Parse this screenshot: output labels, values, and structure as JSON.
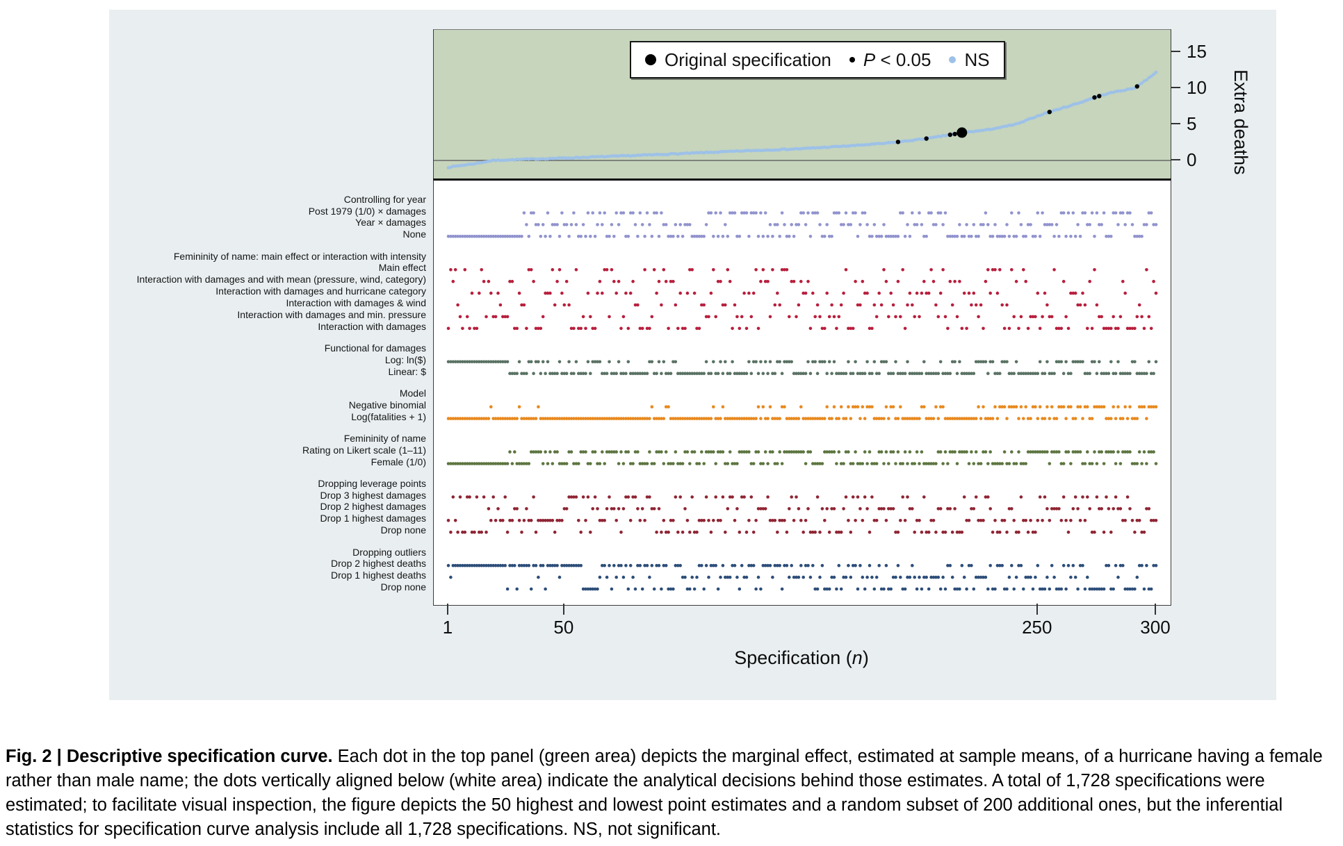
{
  "figure": {
    "background": "#e9eff1",
    "caption": {
      "lead": "Fig. 2 | Descriptive specification curve.",
      "body": " Each dot in the top panel (green area) depicts the marginal effect, estimated at sample means, of a hurricane having a female rather than male name; the dots vertically aligned below (white area) indicate the analytical decisions behind those estimates. A total of 1,728 specifications were estimated; to facilitate visual inspection, the figure depicts the 50 highest and lowest point estimates and a random subset of 200 additional ones, but the inferential statistics for specification curve analysis include all 1,728 specifications. NS, not significant."
    }
  },
  "chart_data": {
    "type": "scatter",
    "title": "Descriptive specification curve",
    "seed": 7,
    "n_columns": 300,
    "top_panel": {
      "ylabel": "Extra deaths",
      "yticks": [
        0,
        5,
        10,
        15
      ],
      "ylim": [
        -2.7,
        17.6
      ],
      "background": "#c6d5bc",
      "ns_color": "#9dc1e8",
      "sig_color": "#000000",
      "zero_line_color": "#666666",
      "curve_anchors": [
        [
          1,
          -0.95
        ],
        [
          5,
          -0.75
        ],
        [
          12,
          -0.45
        ],
        [
          20,
          0
        ],
        [
          35,
          0.18
        ],
        [
          50,
          0.33
        ],
        [
          75,
          0.62
        ],
        [
          100,
          0.95
        ],
        [
          125,
          1.3
        ],
        [
          150,
          1.62
        ],
        [
          170,
          2.0
        ],
        [
          185,
          2.35
        ],
        [
          195,
          2.7
        ],
        [
          205,
          3.1
        ],
        [
          212,
          3.5
        ],
        [
          220,
          3.9
        ],
        [
          228,
          4.2
        ],
        [
          235,
          4.6
        ],
        [
          242,
          5.1
        ],
        [
          248,
          5.9
        ],
        [
          253,
          6.5
        ],
        [
          258,
          7.0
        ],
        [
          263,
          7.5
        ],
        [
          268,
          8.0
        ],
        [
          273,
          8.6
        ],
        [
          278,
          9.1
        ],
        [
          283,
          9.5
        ],
        [
          288,
          9.8
        ],
        [
          291,
          10.0
        ],
        [
          294,
          10.7
        ],
        [
          297,
          11.4
        ],
        [
          300,
          12.2
        ]
      ],
      "significant_specs": [
        191,
        203,
        213,
        215,
        255,
        274,
        276,
        292
      ],
      "original_spec": {
        "n": 218,
        "extra_deaths": 3.85
      }
    },
    "x_axis": {
      "label_prefix": "Specification (",
      "label_italic": "n",
      "label_suffix": ")",
      "ticks": [
        1,
        50,
        250,
        300
      ],
      "range": [
        1,
        300
      ]
    },
    "legend": {
      "items": [
        {
          "marker": "large-black-dot",
          "label": "Original specification"
        },
        {
          "marker": "small-black-dot",
          "label_italic": "P",
          "label": " < 0.05"
        },
        {
          "marker": "blue-dot",
          "label": "NS"
        }
      ]
    },
    "groups": [
      {
        "header": "Controlling for year",
        "color": "#9193ce",
        "rows": [
          "Post 1979 (1/0) × damages",
          "Year × damages",
          "None"
        ],
        "choice_segments": [
          {
            "from": 1,
            "to": 26,
            "weights": [
              0,
              0,
              1
            ]
          },
          {
            "from": 27,
            "to": 300,
            "weights": [
              0.33,
              0.3,
              0.37
            ]
          }
        ]
      },
      {
        "header": "Femininity of name: main effect or interaction with intensity",
        "color": "#b81f3d",
        "rows": [
          "Main effect",
          "Interaction with damages and with mean (pressure, wind, category)",
          "Interaction with damages and hurricane category",
          "Interaction with damages & wind",
          "Interaction with damages and min. pressure",
          "Interaction with damages"
        ],
        "choice_segments": [
          {
            "from": 1,
            "to": 270,
            "weights": [
              0.13,
              0.17,
              0.17,
              0.17,
              0.17,
              0.19
            ]
          },
          {
            "from": 271,
            "to": 300,
            "weights": [
              0.08,
              0.1,
              0.12,
              0.12,
              0.13,
              0.45
            ]
          }
        ]
      },
      {
        "header": "Functional for damages",
        "color": "#5a7264",
        "rows": [
          "Log: ln($)",
          "Linear: $"
        ],
        "choice_segments": [
          {
            "from": 1,
            "to": 26,
            "weights": [
              1,
              0
            ]
          },
          {
            "from": 27,
            "to": 300,
            "weights": [
              0.32,
              0.68
            ]
          }
        ]
      },
      {
        "header": "Model",
        "color": "#e8891f",
        "rows": [
          "Negative binomial",
          "Log(fatalities + 1)"
        ],
        "choice_segments": [
          {
            "from": 1,
            "to": 130,
            "weights": [
              0.06,
              0.94
            ]
          },
          {
            "from": 131,
            "to": 230,
            "weights": [
              0.25,
              0.75
            ]
          },
          {
            "from": 231,
            "to": 300,
            "weights": [
              0.6,
              0.4
            ]
          }
        ]
      },
      {
        "header": "Femininity of name",
        "color": "#5d7540",
        "rows": [
          "Rating on Likert scale (1–11)",
          "Female (1/0)"
        ],
        "choice_segments": [
          {
            "from": 1,
            "to": 26,
            "weights": [
              0,
              1
            ]
          },
          {
            "from": 27,
            "to": 300,
            "weights": [
              0.5,
              0.5
            ]
          }
        ]
      },
      {
        "header": "Dropping leverage points",
        "color": "#8f2433",
        "rows": [
          "Drop 3 highest damages",
          "Drop 2 highest damages",
          "Drop 1 highest damages",
          "Drop none"
        ],
        "choice_segments": [
          {
            "from": 1,
            "to": 16,
            "weights": [
              0.3,
              0.1,
              0.05,
              0.55
            ]
          },
          {
            "from": 17,
            "to": 48,
            "weights": [
              0.08,
              0.07,
              0.75,
              0.1
            ]
          },
          {
            "from": 49,
            "to": 300,
            "weights": [
              0.22,
              0.25,
              0.28,
              0.25
            ]
          }
        ]
      },
      {
        "header": "Dropping outliers",
        "color": "#2d4e79",
        "rows": [
          "Drop 2 highest deaths",
          "Drop 1 highest deaths",
          "Drop none"
        ],
        "choice_segments": [
          {
            "from": 1,
            "to": 55,
            "weights": [
              0.92,
              0.04,
              0.04
            ]
          },
          {
            "from": 56,
            "to": 150,
            "weights": [
              0.45,
              0.27,
              0.28
            ]
          },
          {
            "from": 151,
            "to": 300,
            "weights": [
              0.25,
              0.3,
              0.45
            ]
          }
        ]
      }
    ]
  }
}
